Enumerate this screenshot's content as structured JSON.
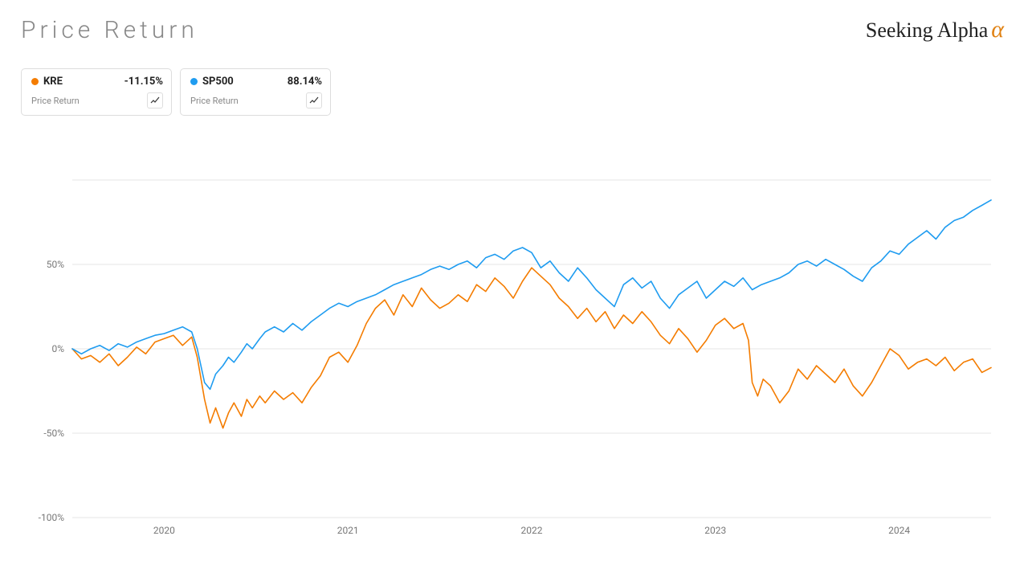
{
  "title": "Price Return",
  "logo": {
    "text": "Seeking Alpha",
    "text_color": "#222222",
    "alpha_color": "#e08214"
  },
  "cards": [
    {
      "ticker": "KRE",
      "value": "-11.15%",
      "sub": "Price Return",
      "dot_color": "#f47c00"
    },
    {
      "ticker": "SP500",
      "value": "88.14%",
      "sub": "Price Return",
      "dot_color": "#1f9cf0"
    }
  ],
  "chart": {
    "type": "line",
    "background_color": "#ffffff",
    "grid_color": "#e6e6e6",
    "axis_text_color": "#777777",
    "axis_fontsize": 12,
    "line_width": 1.6,
    "xlim": [
      2019.5,
      2024.5
    ],
    "ylim": [
      -100,
      100
    ],
    "ytick_step": 50,
    "y_ticks": [
      -100,
      -50,
      0,
      50
    ],
    "y_tick_labels": [
      "-100%",
      "-50%",
      "0%",
      "50%"
    ],
    "x_ticks": [
      2020,
      2021,
      2022,
      2023,
      2024
    ],
    "x_tick_labels": [
      "2020",
      "2021",
      "2022",
      "2023",
      "2024"
    ],
    "top_gridline_y": 100,
    "series": [
      {
        "name": "KRE",
        "color": "#f47c00",
        "points": [
          [
            2019.5,
            0
          ],
          [
            2019.55,
            -6
          ],
          [
            2019.6,
            -4
          ],
          [
            2019.65,
            -8
          ],
          [
            2019.7,
            -3
          ],
          [
            2019.75,
            -10
          ],
          [
            2019.8,
            -5
          ],
          [
            2019.85,
            1
          ],
          [
            2019.9,
            -3
          ],
          [
            2019.95,
            4
          ],
          [
            2020.0,
            6
          ],
          [
            2020.05,
            8
          ],
          [
            2020.1,
            2
          ],
          [
            2020.15,
            7
          ],
          [
            2020.18,
            -5
          ],
          [
            2020.22,
            -30
          ],
          [
            2020.25,
            -44
          ],
          [
            2020.28,
            -35
          ],
          [
            2020.32,
            -47
          ],
          [
            2020.35,
            -38
          ],
          [
            2020.38,
            -32
          ],
          [
            2020.42,
            -40
          ],
          [
            2020.45,
            -30
          ],
          [
            2020.48,
            -35
          ],
          [
            2020.52,
            -28
          ],
          [
            2020.55,
            -32
          ],
          [
            2020.6,
            -25
          ],
          [
            2020.65,
            -30
          ],
          [
            2020.7,
            -26
          ],
          [
            2020.75,
            -32
          ],
          [
            2020.8,
            -23
          ],
          [
            2020.85,
            -16
          ],
          [
            2020.9,
            -5
          ],
          [
            2020.95,
            -2
          ],
          [
            2021.0,
            -8
          ],
          [
            2021.05,
            2
          ],
          [
            2021.1,
            15
          ],
          [
            2021.15,
            24
          ],
          [
            2021.2,
            29
          ],
          [
            2021.25,
            20
          ],
          [
            2021.3,
            32
          ],
          [
            2021.35,
            25
          ],
          [
            2021.4,
            36
          ],
          [
            2021.45,
            29
          ],
          [
            2021.5,
            24
          ],
          [
            2021.55,
            27
          ],
          [
            2021.6,
            32
          ],
          [
            2021.65,
            28
          ],
          [
            2021.7,
            38
          ],
          [
            2021.75,
            34
          ],
          [
            2021.8,
            42
          ],
          [
            2021.85,
            37
          ],
          [
            2021.9,
            30
          ],
          [
            2021.95,
            40
          ],
          [
            2022.0,
            48
          ],
          [
            2022.05,
            43
          ],
          [
            2022.1,
            38
          ],
          [
            2022.15,
            30
          ],
          [
            2022.2,
            25
          ],
          [
            2022.25,
            18
          ],
          [
            2022.3,
            24
          ],
          [
            2022.35,
            16
          ],
          [
            2022.4,
            22
          ],
          [
            2022.45,
            12
          ],
          [
            2022.5,
            20
          ],
          [
            2022.55,
            15
          ],
          [
            2022.6,
            22
          ],
          [
            2022.65,
            16
          ],
          [
            2022.7,
            8
          ],
          [
            2022.75,
            3
          ],
          [
            2022.8,
            12
          ],
          [
            2022.85,
            6
          ],
          [
            2022.9,
            -2
          ],
          [
            2022.95,
            5
          ],
          [
            2023.0,
            14
          ],
          [
            2023.05,
            18
          ],
          [
            2023.1,
            12
          ],
          [
            2023.15,
            15
          ],
          [
            2023.18,
            5
          ],
          [
            2023.2,
            -20
          ],
          [
            2023.23,
            -28
          ],
          [
            2023.26,
            -18
          ],
          [
            2023.3,
            -22
          ],
          [
            2023.35,
            -32
          ],
          [
            2023.4,
            -25
          ],
          [
            2023.45,
            -12
          ],
          [
            2023.5,
            -18
          ],
          [
            2023.55,
            -10
          ],
          [
            2023.6,
            -15
          ],
          [
            2023.65,
            -20
          ],
          [
            2023.7,
            -12
          ],
          [
            2023.75,
            -22
          ],
          [
            2023.8,
            -28
          ],
          [
            2023.85,
            -20
          ],
          [
            2023.9,
            -10
          ],
          [
            2023.95,
            0
          ],
          [
            2024.0,
            -4
          ],
          [
            2024.05,
            -12
          ],
          [
            2024.1,
            -8
          ],
          [
            2024.15,
            -6
          ],
          [
            2024.2,
            -10
          ],
          [
            2024.25,
            -5
          ],
          [
            2024.3,
            -13
          ],
          [
            2024.35,
            -8
          ],
          [
            2024.4,
            -6
          ],
          [
            2024.45,
            -14
          ],
          [
            2024.5,
            -11.15
          ]
        ]
      },
      {
        "name": "SP500",
        "color": "#1f9cf0",
        "points": [
          [
            2019.5,
            0
          ],
          [
            2019.55,
            -3
          ],
          [
            2019.6,
            0
          ],
          [
            2019.65,
            2
          ],
          [
            2019.7,
            -1
          ],
          [
            2019.75,
            3
          ],
          [
            2019.8,
            1
          ],
          [
            2019.85,
            4
          ],
          [
            2019.9,
            6
          ],
          [
            2019.95,
            8
          ],
          [
            2020.0,
            9
          ],
          [
            2020.05,
            11
          ],
          [
            2020.1,
            13
          ],
          [
            2020.15,
            10
          ],
          [
            2020.18,
            0
          ],
          [
            2020.22,
            -20
          ],
          [
            2020.25,
            -24
          ],
          [
            2020.28,
            -15
          ],
          [
            2020.32,
            -10
          ],
          [
            2020.35,
            -5
          ],
          [
            2020.38,
            -8
          ],
          [
            2020.42,
            -2
          ],
          [
            2020.45,
            3
          ],
          [
            2020.48,
            0
          ],
          [
            2020.52,
            6
          ],
          [
            2020.55,
            10
          ],
          [
            2020.6,
            13
          ],
          [
            2020.65,
            10
          ],
          [
            2020.7,
            15
          ],
          [
            2020.75,
            11
          ],
          [
            2020.8,
            16
          ],
          [
            2020.85,
            20
          ],
          [
            2020.9,
            24
          ],
          [
            2020.95,
            27
          ],
          [
            2021.0,
            25
          ],
          [
            2021.05,
            28
          ],
          [
            2021.1,
            30
          ],
          [
            2021.15,
            32
          ],
          [
            2021.2,
            35
          ],
          [
            2021.25,
            38
          ],
          [
            2021.3,
            40
          ],
          [
            2021.35,
            42
          ],
          [
            2021.4,
            44
          ],
          [
            2021.45,
            47
          ],
          [
            2021.5,
            49
          ],
          [
            2021.55,
            47
          ],
          [
            2021.6,
            50
          ],
          [
            2021.65,
            52
          ],
          [
            2021.7,
            48
          ],
          [
            2021.75,
            54
          ],
          [
            2021.8,
            56
          ],
          [
            2021.85,
            53
          ],
          [
            2021.9,
            58
          ],
          [
            2021.95,
            60
          ],
          [
            2022.0,
            57
          ],
          [
            2022.05,
            48
          ],
          [
            2022.1,
            52
          ],
          [
            2022.15,
            45
          ],
          [
            2022.2,
            40
          ],
          [
            2022.25,
            48
          ],
          [
            2022.3,
            42
          ],
          [
            2022.35,
            35
          ],
          [
            2022.4,
            30
          ],
          [
            2022.45,
            25
          ],
          [
            2022.5,
            38
          ],
          [
            2022.55,
            42
          ],
          [
            2022.6,
            36
          ],
          [
            2022.65,
            40
          ],
          [
            2022.7,
            30
          ],
          [
            2022.75,
            24
          ],
          [
            2022.8,
            32
          ],
          [
            2022.85,
            36
          ],
          [
            2022.9,
            40
          ],
          [
            2022.95,
            30
          ],
          [
            2023.0,
            35
          ],
          [
            2023.05,
            40
          ],
          [
            2023.1,
            37
          ],
          [
            2023.15,
            42
          ],
          [
            2023.2,
            35
          ],
          [
            2023.25,
            38
          ],
          [
            2023.3,
            40
          ],
          [
            2023.35,
            42
          ],
          [
            2023.4,
            45
          ],
          [
            2023.45,
            50
          ],
          [
            2023.5,
            52
          ],
          [
            2023.55,
            49
          ],
          [
            2023.6,
            53
          ],
          [
            2023.65,
            50
          ],
          [
            2023.7,
            47
          ],
          [
            2023.75,
            43
          ],
          [
            2023.8,
            40
          ],
          [
            2023.85,
            48
          ],
          [
            2023.9,
            52
          ],
          [
            2023.95,
            58
          ],
          [
            2024.0,
            56
          ],
          [
            2024.05,
            62
          ],
          [
            2024.1,
            66
          ],
          [
            2024.15,
            70
          ],
          [
            2024.2,
            65
          ],
          [
            2024.25,
            72
          ],
          [
            2024.3,
            76
          ],
          [
            2024.35,
            78
          ],
          [
            2024.4,
            82
          ],
          [
            2024.45,
            85
          ],
          [
            2024.5,
            88.14
          ]
        ]
      }
    ]
  }
}
